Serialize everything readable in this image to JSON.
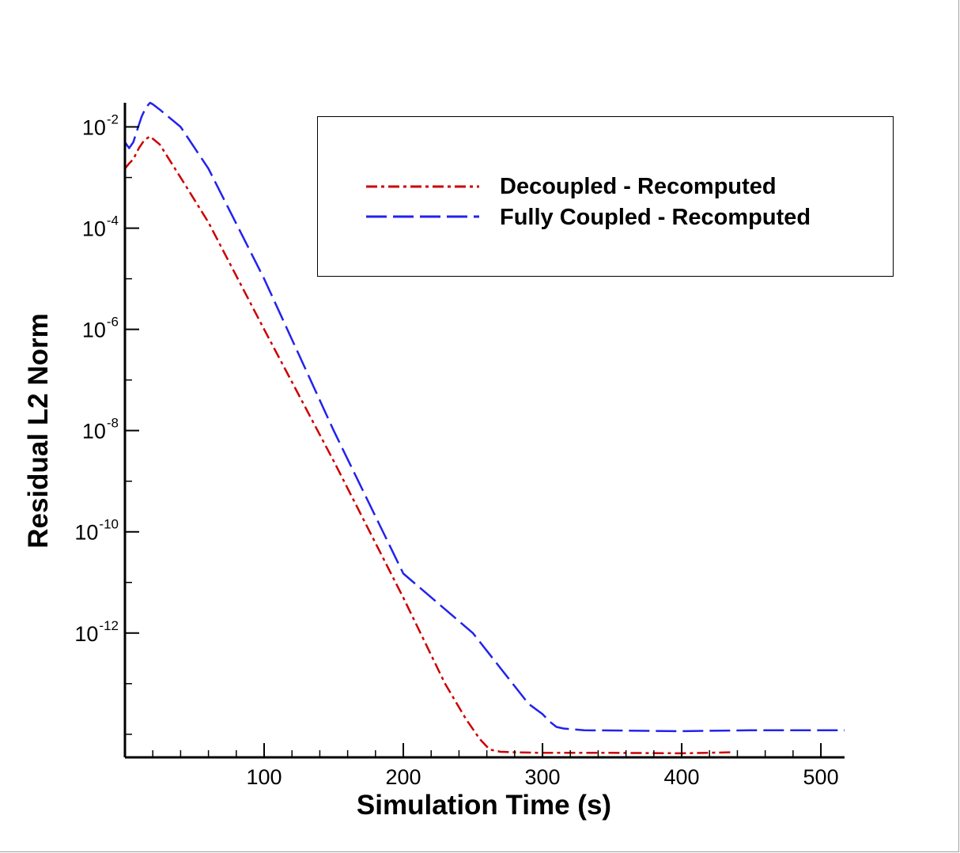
{
  "chart_data": {
    "type": "line",
    "title": "",
    "xlabel": "Simulation Time (s)",
    "ylabel": "Residual L2 Norm",
    "xlim": [
      0,
      517
    ],
    "ylim": [
      3.5e-15,
      0.03
    ],
    "y_scale": "log",
    "grid": false,
    "legend_position": "top-right",
    "x_ticks": [
      100,
      200,
      300,
      400,
      500
    ],
    "x_tick_labels": [
      "100",
      "200",
      "300",
      "400",
      "500"
    ],
    "y_ticks": [
      0.01,
      0.0001,
      1e-06,
      1e-08,
      1e-10,
      1e-12
    ],
    "y_tick_labels": [
      {
        "base": "10",
        "exp": "-2"
      },
      {
        "base": "10",
        "exp": "-4"
      },
      {
        "base": "10",
        "exp": "-6"
      },
      {
        "base": "10",
        "exp": "-8"
      },
      {
        "base": "10",
        "exp": "-10"
      },
      {
        "base": "10",
        "exp": "-12"
      }
    ],
    "series": [
      {
        "name": "Decoupled - Recomputed",
        "color": "#cc0000",
        "dash": "dash-dot",
        "x": [
          0,
          3,
          6,
          10,
          14,
          18,
          25,
          40,
          60,
          100,
          150,
          200,
          230,
          245,
          255,
          262,
          270,
          280,
          300,
          350,
          400,
          437
        ],
        "y": [
          0.0015,
          0.0019,
          0.0023,
          0.0038,
          0.0055,
          0.0065,
          0.0045,
          0.001,
          0.00013,
          1e-06,
          2.5e-09,
          5e-12,
          1e-13,
          2e-14,
          8e-15,
          5e-15,
          4.5e-15,
          4.4e-15,
          4.3e-15,
          4.3e-15,
          4.2e-15,
          4.4e-15
        ]
      },
      {
        "name": "Fully Coupled - Recomputed",
        "color": "#2222ee",
        "dash": "long-dash",
        "x": [
          0,
          3,
          6,
          9,
          12,
          15,
          18,
          20,
          25,
          40,
          60,
          100,
          150,
          200,
          250,
          290,
          300,
          305,
          310,
          315,
          330,
          400,
          450,
          517
        ],
        "y": [
          0.005,
          0.0038,
          0.005,
          0.009,
          0.016,
          0.024,
          0.03,
          0.028,
          0.022,
          0.01,
          0.0015,
          1e-05,
          1e-08,
          1.5e-11,
          1e-12,
          4e-14,
          2.5e-14,
          1.8e-14,
          1.4e-14,
          1.3e-14,
          1.2e-14,
          1.15e-14,
          1.2e-14,
          1.2e-14
        ]
      }
    ]
  }
}
